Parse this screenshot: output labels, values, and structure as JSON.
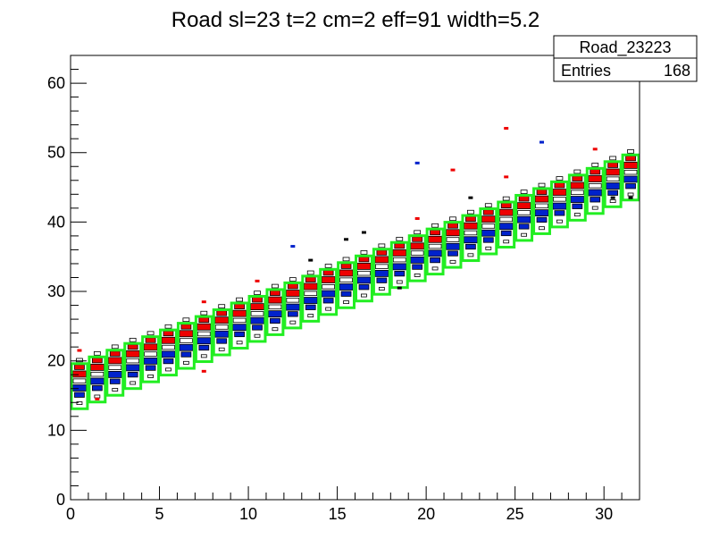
{
  "chart_data": {
    "type": "heatmap",
    "title": "Road sl=23 t=2 cm=2 eff=91 width=5.2",
    "xlabel": "",
    "ylabel": "",
    "xlim": [
      0,
      32
    ],
    "ylim": [
      0,
      64
    ],
    "x_ticks": [
      0,
      5,
      10,
      15,
      20,
      25,
      30
    ],
    "y_ticks": [
      0,
      10,
      20,
      30,
      40,
      50,
      60
    ],
    "grid": false,
    "stats_box": {
      "name": "Road_23223",
      "entries_label": "Entries",
      "entries": 168
    },
    "road": {
      "description_slope": 1.0,
      "start_y": 16.0,
      "slope_per_x": 0.97,
      "colors": {
        "window": "#22ee22",
        "upper": "#ee0000",
        "lower": "#0022cc",
        "outline": "#000000"
      }
    },
    "outliers": [
      {
        "x": 0.5,
        "y": 21.5,
        "color": "#ee0000"
      },
      {
        "x": 1.5,
        "y": 14.5,
        "color": "#ee0000"
      },
      {
        "x": 7.5,
        "y": 18.5,
        "color": "#ee0000"
      },
      {
        "x": 7.5,
        "y": 28.5,
        "color": "#ee0000"
      },
      {
        "x": 10.5,
        "y": 31.5,
        "color": "#ee0000"
      },
      {
        "x": 12.5,
        "y": 36.5,
        "color": "#0022cc"
      },
      {
        "x": 19.5,
        "y": 48.5,
        "color": "#0022cc"
      },
      {
        "x": 19.5,
        "y": 40.5,
        "color": "#ee0000"
      },
      {
        "x": 21.5,
        "y": 47.5,
        "color": "#ee0000"
      },
      {
        "x": 24.5,
        "y": 53.5,
        "color": "#ee0000"
      },
      {
        "x": 24.5,
        "y": 46.5,
        "color": "#ee0000"
      },
      {
        "x": 26.5,
        "y": 51.5,
        "color": "#0022cc"
      },
      {
        "x": 29.5,
        "y": 50.5,
        "color": "#ee0000"
      },
      {
        "x": 13.5,
        "y": 34.5,
        "color": "#000000"
      },
      {
        "x": 15.5,
        "y": 37.5,
        "color": "#000000"
      },
      {
        "x": 16.5,
        "y": 38.5,
        "color": "#000000"
      },
      {
        "x": 18.5,
        "y": 30.5,
        "color": "#000000"
      },
      {
        "x": 22.5,
        "y": 43.5,
        "color": "#000000"
      },
      {
        "x": 30.5,
        "y": 43.5,
        "color": "#000000"
      },
      {
        "x": 31.5,
        "y": 43.5,
        "color": "#000000"
      }
    ]
  }
}
